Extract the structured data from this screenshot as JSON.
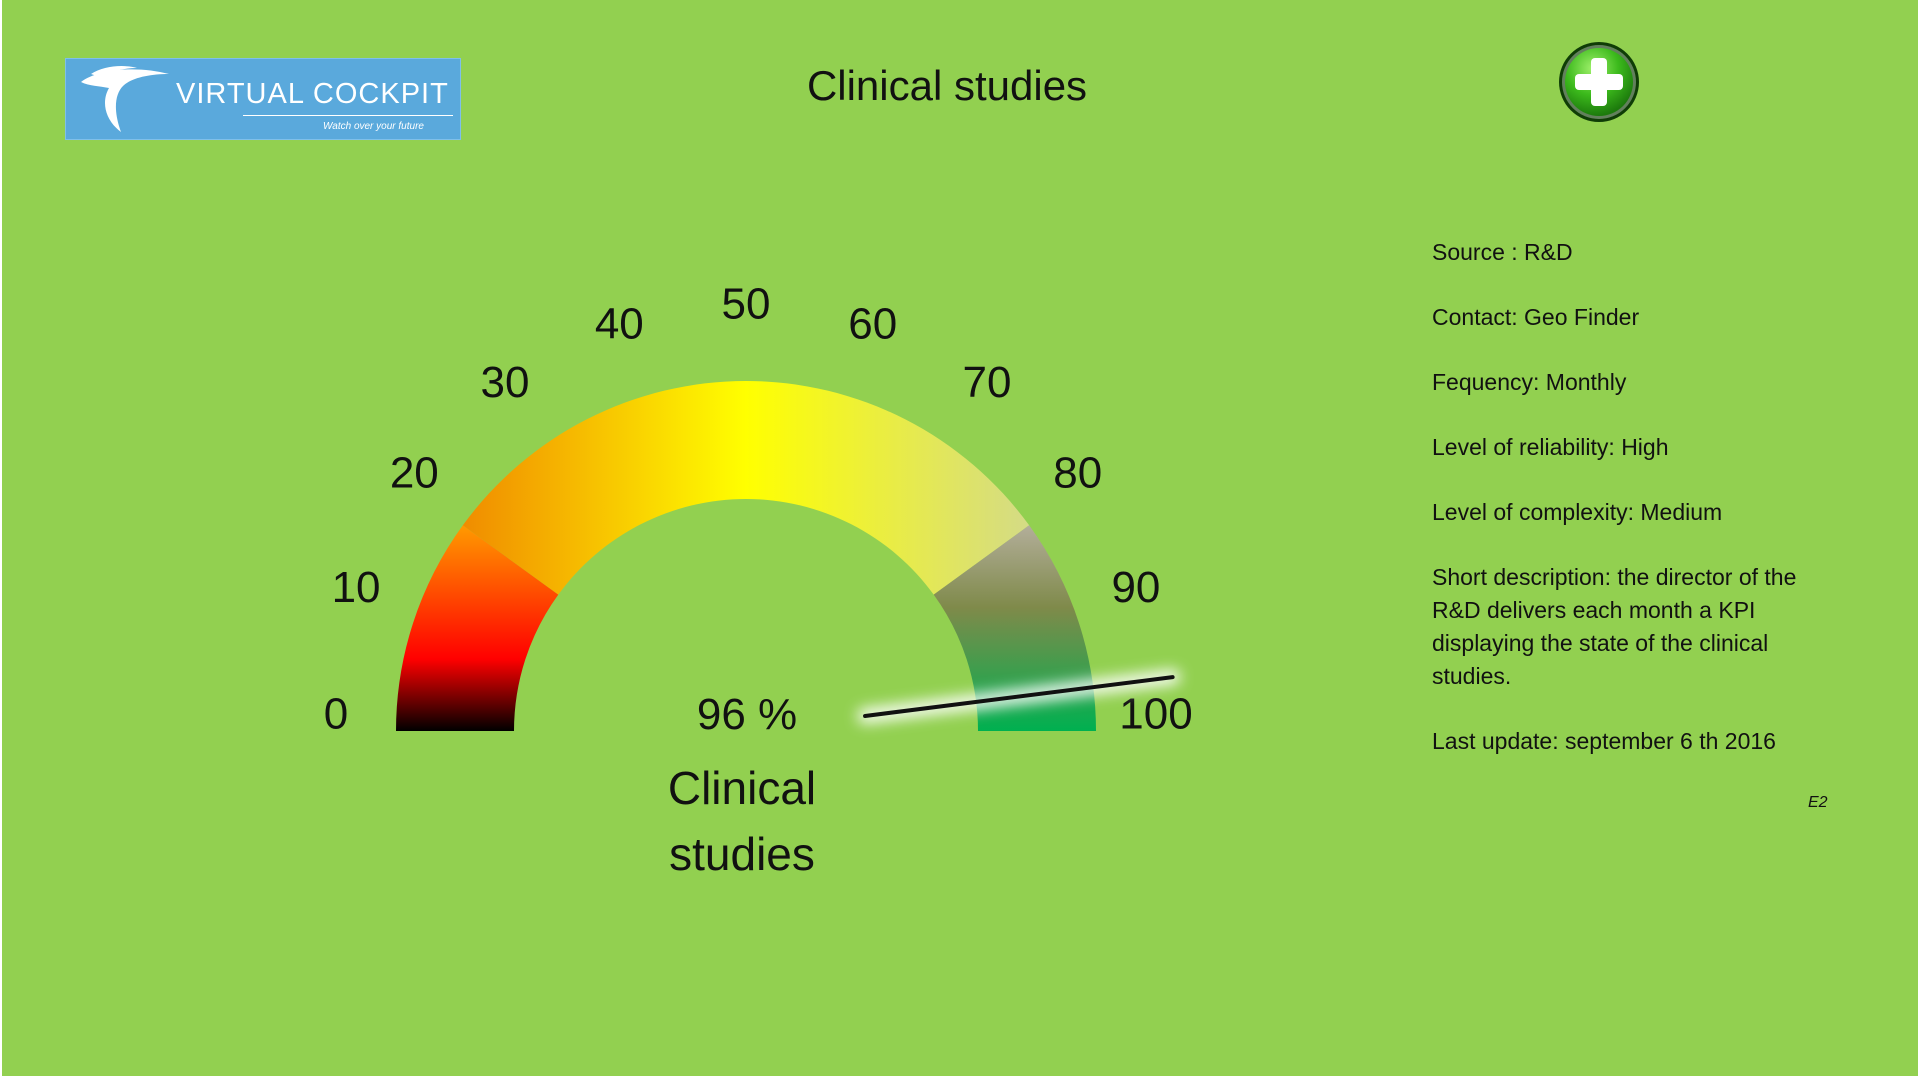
{
  "logo": {
    "title": "VIRTUAL COCKPIT",
    "tagline": "Watch over your future"
  },
  "header": {
    "title": "Clinical studies",
    "add_icon": "plus-circle-icon",
    "add_icon_color": "#2aa81a"
  },
  "gauge": {
    "value_text": "96 %",
    "label": "Clinical studies",
    "value": 96,
    "min": 0,
    "max": 100,
    "ticks": [
      "0",
      "10",
      "20",
      "30",
      "40",
      "50",
      "60",
      "70",
      "80",
      "90",
      "100"
    ],
    "band_colors": [
      "#000000",
      "#ff0000",
      "#ff8a00",
      "#ffff00",
      "#e2e27a",
      "#8a9a60",
      "#00b050"
    ]
  },
  "info": {
    "source": "Source : R&D",
    "contact": "Contact: Geo Finder",
    "frequency": "Fequency: Monthly",
    "reliability": "Level of reliability: High",
    "complexity": "Level of complexity: Medium",
    "description": "Short description:  the director of the R&D delivers each month a KPI displaying the state of the clinical studies.",
    "last_update": "Last update:  september 6 th 2016"
  },
  "slide_code": "E2",
  "colors": {
    "background": "#92d050",
    "logo_background": "#5aa9dc"
  }
}
